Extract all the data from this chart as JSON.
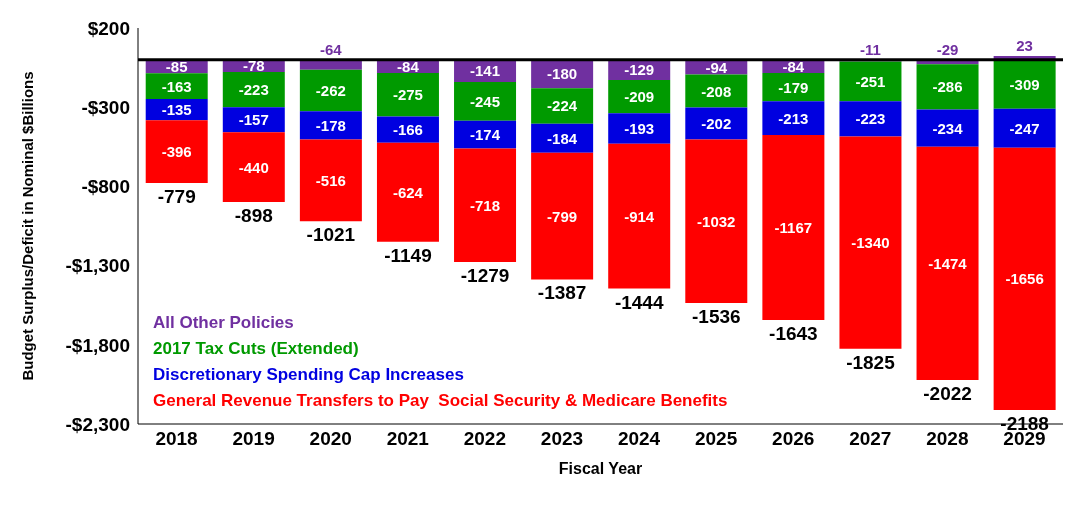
{
  "chart_data": {
    "type": "bar",
    "stacked": true,
    "xlabel": "Fiscal Year",
    "ylabel": "Budget Surplus/Deficit in Nominal $Billions",
    "categories": [
      "2018",
      "2019",
      "2020",
      "2021",
      "2022",
      "2023",
      "2024",
      "2025",
      "2026",
      "2027",
      "2028",
      "2029"
    ],
    "series": [
      {
        "name": "All Other Policies",
        "color": "#7030a0",
        "values": [
          -85,
          -78,
          -64,
          -84,
          -141,
          -180,
          -129,
          -94,
          -84,
          -11,
          -29,
          23
        ]
      },
      {
        "name": "2017 Tax Cuts (Extended)",
        "color": "#009a00",
        "values": [
          -163,
          -223,
          -262,
          -275,
          -245,
          -224,
          -209,
          -208,
          -179,
          -251,
          -286,
          -309
        ]
      },
      {
        "name": "Discretionary Spending Cap Increases",
        "color": "#0000e0",
        "values": [
          -135,
          -157,
          -178,
          -166,
          -174,
          -184,
          -193,
          -202,
          -213,
          -223,
          -234,
          -247
        ]
      },
      {
        "name": "General Revenue Transfers to Pay  Social Security & Medicare Benefits",
        "color": "#ff0000",
        "values": [
          -396,
          -440,
          -516,
          -624,
          -718,
          -799,
          -914,
          -1032,
          -1167,
          -1340,
          -1474,
          -1656
        ]
      }
    ],
    "totals": [
      "-779",
      "-898",
      "-1021",
      "-1149",
      "-1279",
      "-1387",
      "-1444",
      "-1536",
      "-1643",
      "-1825",
      "-2022",
      "-2188"
    ],
    "data_labels": true,
    "ylim": [
      -2300,
      200
    ],
    "yticks": [
      {
        "value": 200,
        "label": "$200"
      },
      {
        "value": -300,
        "label": "-$300"
      },
      {
        "value": -800,
        "label": "-$800"
      },
      {
        "value": -1300,
        "label": "-$1,300"
      },
      {
        "value": -1800,
        "label": "-$1,800"
      },
      {
        "value": -2300,
        "label": "-$2,300"
      }
    ],
    "ref_lines": [
      {
        "axis": "y",
        "value": 0,
        "color": "#000000"
      }
    ],
    "grid": false,
    "legend": "bottom left"
  }
}
